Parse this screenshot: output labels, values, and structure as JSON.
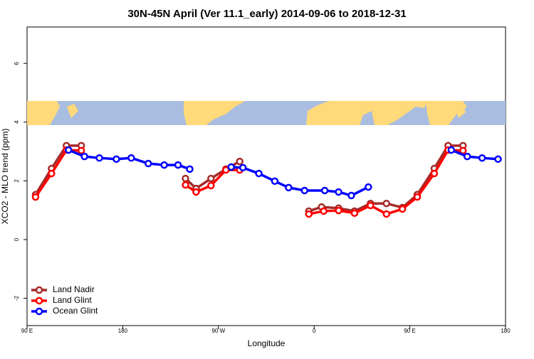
{
  "chart_data": {
    "type": "line",
    "title": "30N-45N April (Ver 11.1_early)   2014-09-06 to 2018-12-31",
    "xlabel": "Longitude",
    "ylabel": "XCO2 - MLO trend (ppm)",
    "xlim": [
      90,
      540
    ],
    "ylim": [
      -2.93,
      7.24
    ],
    "xticks": [
      {
        "value": 90,
        "label": "90 E"
      },
      180,
      {
        "value": 270,
        "label": "90 W"
      },
      {
        "value": 360,
        "label": "0"
      },
      {
        "value": 450,
        "label": "90 E"
      },
      {
        "value": 540,
        "label": "180"
      }
    ],
    "yticks": [
      -2,
      0,
      2,
      4,
      6
    ],
    "legend": "bottom-left",
    "series": [
      {
        "name": "Land Nadir",
        "color": "#a52a2a",
        "x": [
          98,
          113,
          127,
          141,
          null,
          239,
          249,
          263,
          277,
          290,
          null,
          355,
          367,
          383,
          398,
          413,
          428,
          443,
          457,
          473,
          486,
          500
        ],
        "values": [
          1.53,
          2.42,
          3.2,
          3.2,
          null,
          2.08,
          1.74,
          2.08,
          2.4,
          2.66,
          null,
          0.97,
          1.11,
          1.07,
          0.97,
          1.23,
          1.23,
          1.09,
          1.53,
          2.42,
          3.2,
          3.2
        ]
      },
      {
        "name": "Land Glint",
        "color": "#ff0000",
        "x": [
          98,
          113,
          127,
          141,
          null,
          239,
          249,
          263,
          277,
          290,
          null,
          355,
          369,
          383,
          398,
          413,
          428,
          443,
          457,
          473,
          486,
          500
        ],
        "values": [
          1.45,
          2.25,
          3.05,
          3.03,
          null,
          1.86,
          1.62,
          1.84,
          2.37,
          2.37,
          null,
          0.87,
          0.97,
          0.99,
          0.9,
          1.16,
          0.87,
          1.04,
          1.45,
          2.25,
          3.05,
          3.03
        ]
      },
      {
        "name": "Ocean Glint",
        "color": "#0000ff",
        "x": [
          129,
          144,
          158,
          174,
          188,
          204,
          219,
          232,
          243,
          null,
          282,
          293,
          308,
          323,
          336,
          351,
          370,
          383,
          395,
          411,
          null,
          489,
          504,
          518,
          533
        ],
        "values": [
          3.05,
          2.83,
          2.78,
          2.74,
          2.78,
          2.59,
          2.54,
          2.54,
          2.4,
          null,
          2.47,
          2.45,
          2.25,
          1.99,
          1.77,
          1.67,
          1.67,
          1.62,
          1.5,
          1.79,
          null,
          3.05,
          2.83,
          2.78,
          2.74
        ]
      }
    ]
  }
}
